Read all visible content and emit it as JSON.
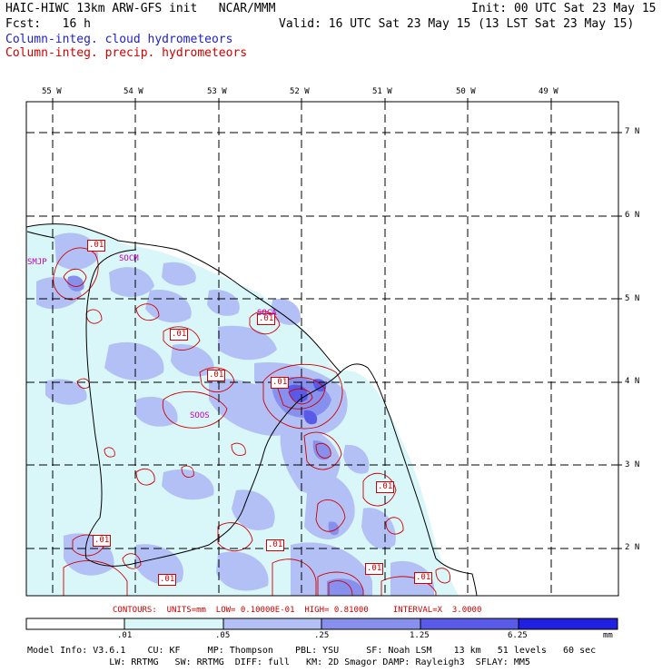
{
  "header": {
    "line1_left": "HAIC-HIWC 13km ARW-GFS init   NCAR/MMM",
    "line1_right": "Init: 00 UTC Sat 23 May 15",
    "line2_left": "Fcst:   16 h",
    "line2_right": "Valid: 16 UTC Sat 23 May 15 (13 LST Sat 23 May 15)",
    "field1": "Column-integ. cloud hydrometeors",
    "field2": "Column-integ. precip. hydrometeors"
  },
  "colors": {
    "field1": "#2020d0",
    "field2": "#d00000",
    "shade1": "#d9f6f8",
    "shade2": "#b3c0f5",
    "shade3": "#8890ee",
    "shade4": "#5a5ae8",
    "shade5": "#2020e0",
    "contour": "#d00000",
    "station": "#c000c0"
  },
  "map": {
    "lon_labels": [
      "55 W",
      "54 W",
      "53 W",
      "52 W",
      "51 W",
      "50 W",
      "49 W"
    ],
    "lat_labels": [
      "7 N",
      "6 N",
      "5 N",
      "4 N",
      "3 N",
      "2 N"
    ],
    "stations": [
      "SMJP",
      "SOCM",
      "SOCA",
      "SOOS"
    ],
    "contour_labels": [
      ".01",
      ".01",
      ".01",
      ".01",
      ".01",
      ".01",
      ".01",
      ".01",
      ".01",
      ".01",
      ".01"
    ]
  },
  "contours_line": "CONTOURS:  UNITS=mm  LOW= 0.10000E-01  HIGH= 0.81000     INTERVAL=X  3.0000",
  "colorbar": {
    "ticks": [
      ".01",
      ".05",
      ".25",
      "1.25",
      "6.25"
    ],
    "units": "mm"
  },
  "footer": {
    "line1": "Model Info: V3.6.1    CU: KF     MP: Thompson    PBL: YSU     SF: Noah LSM    13 km   51 levels   60 sec",
    "line2": "               LW: RRTMG   SW: RRTMG  DIFF: full   KM: 2D Smagor DAMP: Rayleigh3  SFLAY: MM5"
  }
}
